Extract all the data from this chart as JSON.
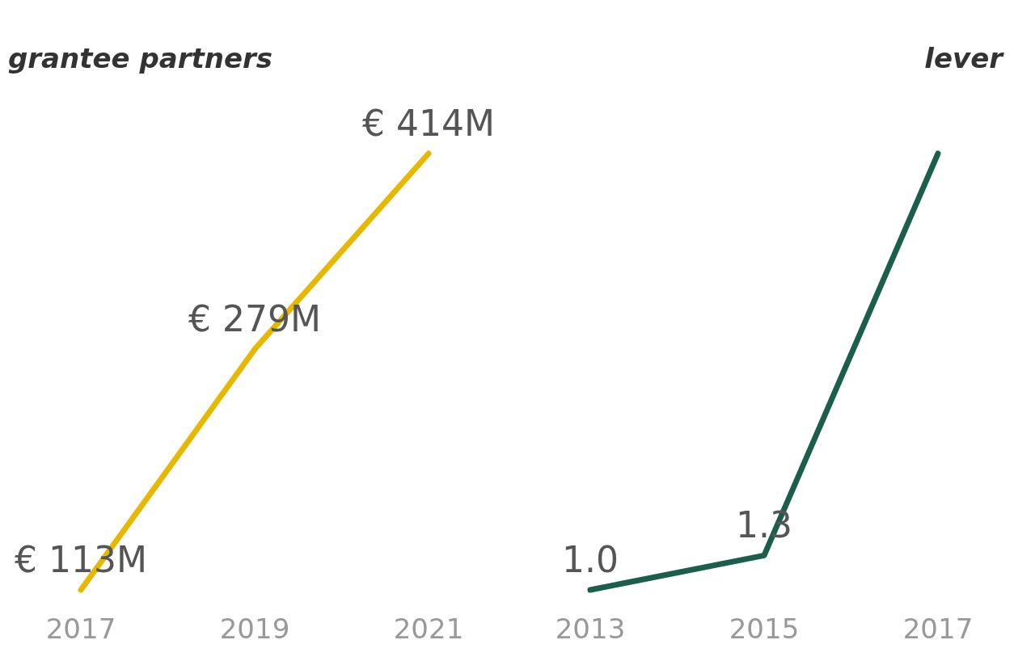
{
  "chart_data": [
    {
      "type": "line",
      "title": "grantee partners",
      "categories": [
        "2017",
        "2019",
        "2021"
      ],
      "values": [
        113,
        279,
        414
      ],
      "color": "#e6b800",
      "value_labels": [
        "€ 113M",
        "€ 279M",
        "€ 414M"
      ],
      "marker": "none",
      "grid": false
    },
    {
      "type": "line",
      "title": "lever",
      "categories": [
        "2013",
        "2015",
        "2017"
      ],
      "values": [
        1.0,
        1.3,
        4.8
      ],
      "color": "#1b5e4c",
      "value_labels": [
        "1.0",
        "1.3",
        null
      ],
      "marker": "none",
      "grid": false
    }
  ]
}
